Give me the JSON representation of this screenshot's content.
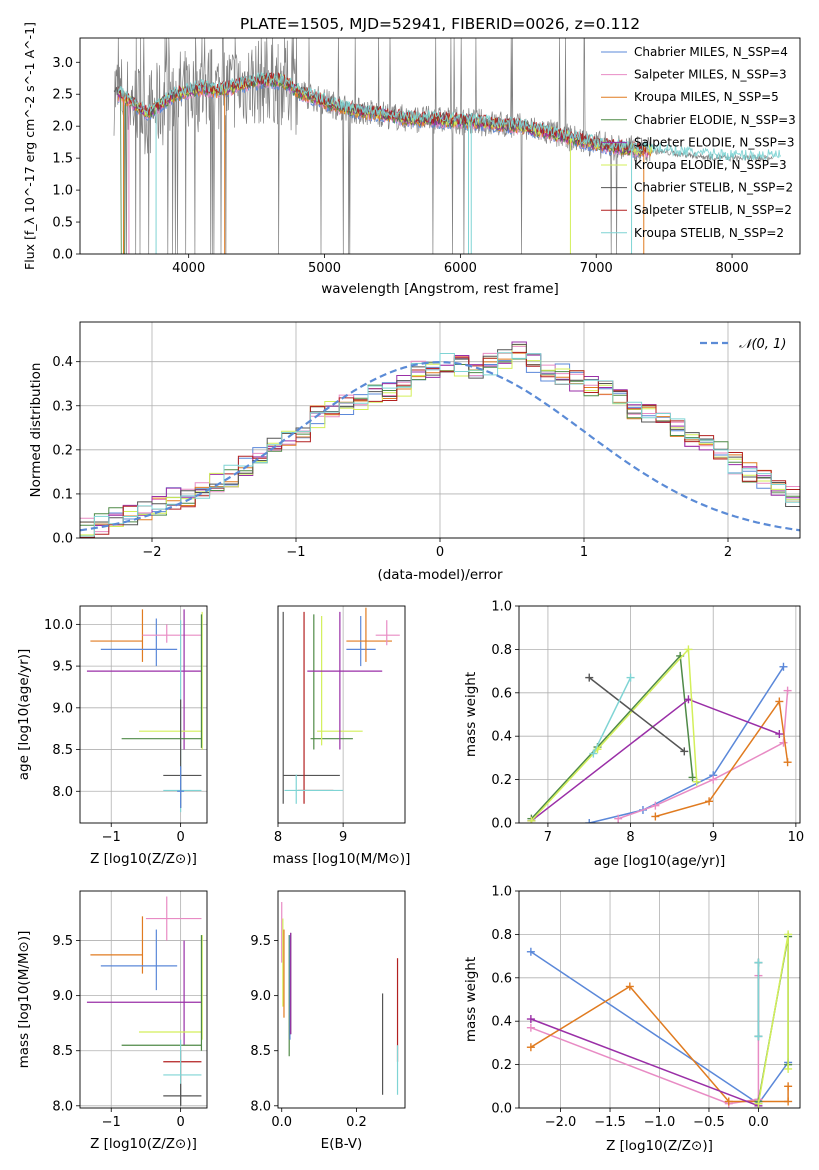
{
  "figure": {
    "title": "PLATE=1505, MJD=52941, FIBERID=0026, z=0.112"
  },
  "colors": {
    "c1": "#5b88d9",
    "c2": "#e88bc4",
    "c3": "#e07b20",
    "c4": "#4f8a47",
    "c5": "#9a2fa7",
    "c6": "#d3ef5a",
    "c7": "#555555",
    "c8": "#b22020",
    "c9": "#7fd4d4",
    "gray": "#808080",
    "gauss": "#5b8bd6"
  },
  "chart_data": [
    {
      "id": "spectrum",
      "type": "line",
      "xlabel": "wavelength [Angstrom, rest frame]",
      "ylabel": "Flux [f_λ 10^-17 erg cm^-2 s^-1 A^-1]",
      "xlim": [
        3200,
        8500
      ],
      "ylim": [
        0,
        3.38
      ],
      "xticks": [
        "4000",
        "5000",
        "6000",
        "7000",
        "8000"
      ],
      "yticks": [
        "0.0",
        "0.5",
        "1.0",
        "1.5",
        "2.0",
        "2.5",
        "3.0"
      ],
      "legend_position": "upper right",
      "legend": [
        {
          "label": "Chabrier MILES, N_SSP=4",
          "color": "c1"
        },
        {
          "label": "Salpeter MILES, N_SSP=3",
          "color": "c2"
        },
        {
          "label": "Kroupa MILES, N_SSP=5",
          "color": "c3"
        },
        {
          "label": "Chabrier ELODIE, N_SSP=3",
          "color": "c4"
        },
        {
          "label": "Salpeter ELODIE, N_SSP=3",
          "color": "c5"
        },
        {
          "label": "Kroupa ELODIE, N_SSP=3",
          "color": "c6"
        },
        {
          "label": "Chabrier STELIB, N_SSP=2",
          "color": "c7"
        },
        {
          "label": "Salpeter STELIB, N_SSP=2",
          "color": "c8"
        },
        {
          "label": "Kroupa STELIB, N_SSP=2",
          "color": "c9"
        }
      ],
      "continuum": {
        "x": [
          3450,
          3600,
          3700,
          3800,
          3900,
          4000,
          4100,
          4200,
          4300,
          4400,
          4500,
          4600,
          4700,
          4800,
          5000,
          5200,
          5400,
          5600,
          5800,
          6000,
          6200,
          6400,
          6600,
          6800,
          7000,
          7200,
          7400,
          7600,
          7800,
          8000,
          8200,
          8300
        ],
        "y": [
          2.55,
          2.35,
          2.2,
          2.35,
          2.5,
          2.55,
          2.6,
          2.55,
          2.6,
          2.65,
          2.7,
          2.72,
          2.7,
          2.55,
          2.38,
          2.25,
          2.2,
          2.12,
          2.1,
          2.08,
          2.05,
          2.0,
          1.93,
          1.82,
          1.72,
          1.65,
          1.62,
          1.57,
          1.52,
          1.5,
          1.5,
          1.5
        ]
      }
    },
    {
      "id": "residual-hist",
      "type": "bar",
      "xlabel": "(data-model)/error",
      "ylabel": "Normed distribution",
      "xlim": [
        -2.5,
        2.5
      ],
      "ylim": [
        0,
        0.49
      ],
      "xticks": [
        "−2",
        "−1",
        "0",
        "1",
        "2"
      ],
      "yticks": [
        "0.0",
        "0.1",
        "0.2",
        "0.3",
        "0.4"
      ],
      "legend": [
        {
          "label": "𝒩(0, 1)",
          "color": "gauss"
        }
      ],
      "bin_width": 0.1,
      "values": [
        0.02,
        0.03,
        0.045,
        0.055,
        0.06,
        0.075,
        0.09,
        0.095,
        0.11,
        0.125,
        0.14,
        0.165,
        0.185,
        0.205,
        0.225,
        0.24,
        0.275,
        0.295,
        0.3,
        0.31,
        0.325,
        0.335,
        0.345,
        0.38,
        0.385,
        0.395,
        0.39,
        0.37,
        0.395,
        0.405,
        0.42,
        0.4,
        0.38,
        0.37,
        0.355,
        0.345,
        0.335,
        0.315,
        0.29,
        0.285,
        0.28,
        0.255,
        0.23,
        0.21,
        0.195,
        0.17,
        0.15,
        0.13,
        0.11,
        0.095,
        0.08,
        0.07,
        0.06,
        0.05,
        0.045,
        0.04,
        0.035,
        0.03,
        0.025,
        0.02
      ]
    },
    {
      "id": "age-vs-Z",
      "type": "scatter",
      "xlabel": "Z [log10(Z/Z⊙)]",
      "ylabel": "age  [log10(age/yr)]",
      "xlim": [
        -1.45,
        0.38
      ],
      "ylim": [
        7.62,
        10.22
      ],
      "xticks": [
        "−1",
        "0"
      ],
      "yticks": [
        "8.0",
        "8.5",
        "9.0",
        "9.5",
        "10.0"
      ],
      "errorbars": [
        {
          "color": "c3",
          "h": [
            -1.3,
            -0.55,
            9.8
          ],
          "v": [
            -0.55,
            9.55,
            10.18
          ]
        },
        {
          "color": "c1",
          "h": [
            -1.15,
            -0.05,
            9.7
          ],
          "v": [
            -0.35,
            9.5,
            10.07
          ]
        },
        {
          "color": "c2",
          "h": [
            -0.55,
            0.3,
            9.87
          ],
          "v": [
            -0.2,
            9.78,
            10.0
          ]
        },
        {
          "color": "c5",
          "h": [
            -1.35,
            0.3,
            9.44
          ],
          "v": [
            0.05,
            8.5,
            10.18
          ]
        },
        {
          "color": "c6",
          "v": [
            0.31,
            8.5,
            10.15
          ],
          "h": [
            -0.6,
            0.3,
            8.72
          ]
        },
        {
          "color": "c4",
          "h": [
            -0.85,
            0.3,
            8.63
          ],
          "v": [
            0.3,
            8.52,
            10.12
          ]
        },
        {
          "color": "c9",
          "v": [
            0.0,
            7.75,
            10.05
          ],
          "h": [
            -0.25,
            0.3,
            8.01
          ]
        },
        {
          "color": "c7",
          "h": [
            -0.25,
            0.3,
            8.19
          ],
          "v": [
            0.0,
            7.8,
            9.1
          ]
        },
        {
          "color": "c1",
          "v": [
            0.0,
            7.8,
            8.3
          ],
          "h": [
            -0.05,
            0.05,
            8.0
          ]
        }
      ]
    },
    {
      "id": "age-vs-mass",
      "type": "scatter",
      "xlabel": "mass [log10(M/M⊙)]",
      "ylabel": "",
      "xlim": [
        8.0,
        9.95
      ],
      "ylim": [
        7.62,
        10.22
      ],
      "xticks": [
        "8",
        "9"
      ],
      "yticks": [],
      "errorbars": [
        {
          "color": "c7",
          "v": [
            8.08,
            7.85,
            10.15
          ],
          "h": [
            8.08,
            8.95,
            8.19
          ]
        },
        {
          "color": "c8",
          "v": [
            8.4,
            7.85,
            10.15
          ],
          "h": [
            8.3,
            8.85,
            8.01
          ]
        },
        {
          "color": "c4",
          "v": [
            8.55,
            8.5,
            10.12
          ],
          "h": [
            8.5,
            9.15,
            8.63
          ]
        },
        {
          "color": "c6",
          "v": [
            8.67,
            8.55,
            10.1
          ],
          "h": [
            8.6,
            9.3,
            8.72
          ]
        },
        {
          "color": "c5",
          "v": [
            8.95,
            8.5,
            10.15
          ],
          "h": [
            8.45,
            9.6,
            9.44
          ]
        },
        {
          "color": "c9",
          "h": [
            8.1,
            9.0,
            8.01
          ],
          "v": [
            8.28,
            7.85,
            8.2
          ]
        },
        {
          "color": "c1",
          "v": [
            9.27,
            9.5,
            10.1
          ],
          "h": [
            9.05,
            9.5,
            9.7
          ]
        },
        {
          "color": "c3",
          "v": [
            9.35,
            9.55,
            10.2
          ],
          "h": [
            9.05,
            9.75,
            9.8
          ]
        },
        {
          "color": "c2",
          "v": [
            9.67,
            9.75,
            10.05
          ],
          "h": [
            9.5,
            9.87,
            9.87
          ]
        }
      ]
    },
    {
      "id": "massweight-vs-age",
      "type": "line",
      "xlabel": "age  [log10(age/yr)]",
      "ylabel": "mass weight",
      "xlim": [
        6.65,
        10.05
      ],
      "ylim": [
        0,
        1.0
      ],
      "xticks": [
        "7",
        "8",
        "9",
        "10"
      ],
      "yticks": [
        "0.0",
        "0.2",
        "0.4",
        "0.6",
        "0.8",
        "1.0"
      ],
      "series": [
        {
          "color": "c1",
          "x": [
            7.5,
            8.15,
            9.0,
            9.85
          ],
          "y": [
            0.0,
            0.06,
            0.22,
            0.72
          ]
        },
        {
          "color": "c2",
          "x": [
            7.85,
            8.3,
            9.0,
            9.85,
            9.9
          ],
          "y": [
            0.02,
            0.08,
            0.2,
            0.37,
            0.61
          ]
        },
        {
          "color": "c3",
          "x": [
            8.3,
            8.95,
            9.8,
            9.9
          ],
          "y": [
            0.03,
            0.1,
            0.56,
            0.28
          ]
        },
        {
          "color": "c4",
          "x": [
            6.8,
            7.6,
            8.6,
            8.75
          ],
          "y": [
            0.02,
            0.35,
            0.77,
            0.21
          ]
        },
        {
          "color": "c5",
          "x": [
            6.8,
            8.7,
            9.8
          ],
          "y": [
            0.01,
            0.57,
            0.41
          ]
        },
        {
          "color": "c6",
          "x": [
            6.8,
            7.6,
            8.7,
            8.8
          ],
          "y": [
            0.01,
            0.34,
            0.8,
            0.19
          ]
        },
        {
          "color": "c7",
          "x": [
            7.5,
            8.65
          ],
          "y": [
            0.67,
            0.33
          ]
        },
        {
          "color": "c9",
          "x": [
            7.55,
            8.0
          ],
          "y": [
            0.32,
            0.67
          ]
        }
      ]
    },
    {
      "id": "mass-vs-Z",
      "type": "scatter",
      "xlabel": "Z [log10(Z/Z⊙)]",
      "ylabel": "mass [log10(M/M⊙)]",
      "xlim": [
        -1.45,
        0.38
      ],
      "ylim": [
        7.98,
        9.95
      ],
      "xticks": [
        "−1",
        "0"
      ],
      "yticks": [
        "8.0",
        "8.5",
        "9.0",
        "9.5"
      ],
      "errorbars": [
        {
          "color": "c2",
          "h": [
            -0.5,
            0.3,
            9.7
          ],
          "v": [
            -0.2,
            9.5,
            9.9
          ]
        },
        {
          "color": "c3",
          "h": [
            -1.3,
            -0.55,
            9.37
          ],
          "v": [
            -0.55,
            9.2,
            9.72
          ]
        },
        {
          "color": "c1",
          "h": [
            -1.15,
            -0.05,
            9.27
          ],
          "v": [
            -0.35,
            9.05,
            9.6
          ]
        },
        {
          "color": "c5",
          "h": [
            -1.35,
            0.3,
            8.94
          ],
          "v": [
            0.05,
            8.55,
            9.5
          ]
        },
        {
          "color": "c6",
          "h": [
            -0.6,
            0.3,
            8.67
          ],
          "v": [
            0.31,
            8.6,
            9.55
          ]
        },
        {
          "color": "c4",
          "h": [
            -0.85,
            0.3,
            8.55
          ],
          "v": [
            0.3,
            8.5,
            9.55
          ]
        },
        {
          "color": "c8",
          "h": [
            -0.25,
            0.3,
            8.4
          ],
          "v": [
            0.0,
            8.0,
            8.5
          ]
        },
        {
          "color": "c9",
          "h": [
            -0.25,
            0.3,
            8.28
          ],
          "v": [
            0.0,
            8.0,
            8.6
          ]
        },
        {
          "color": "c7",
          "h": [
            -0.25,
            0.3,
            8.09
          ],
          "v": [
            0.0,
            8.0,
            8.2
          ]
        }
      ]
    },
    {
      "id": "mass-vs-ebv",
      "type": "scatter",
      "xlabel": "E(B-V)",
      "ylabel": "",
      "xlim": [
        -0.01,
        0.33
      ],
      "ylim": [
        7.98,
        9.95
      ],
      "xticks": [
        "0.0",
        "0.2"
      ],
      "yticks": [
        "8.0",
        "8.5",
        "9.0",
        "9.5"
      ],
      "errorbars": [
        {
          "color": "c2",
          "v": [
            0.0,
            9.3,
            9.85
          ]
        },
        {
          "color": "c6",
          "v": [
            0.003,
            8.9,
            9.7
          ]
        },
        {
          "color": "c3",
          "v": [
            0.006,
            8.8,
            9.6
          ]
        },
        {
          "color": "c4",
          "v": [
            0.02,
            8.45,
            9.55
          ]
        },
        {
          "color": "c1",
          "v": [
            0.022,
            8.6,
            9.55
          ]
        },
        {
          "color": "c7",
          "v": [
            0.024,
            8.65,
            9.57
          ]
        },
        {
          "color": "c5",
          "v": [
            0.024,
            8.65,
            9.57
          ]
        },
        {
          "color": "c7",
          "v": [
            0.27,
            8.1,
            9.02
          ]
        },
        {
          "color": "c8",
          "v": [
            0.31,
            8.4,
            9.34
          ]
        },
        {
          "color": "c9",
          "v": [
            0.31,
            8.1,
            8.55
          ]
        }
      ]
    },
    {
      "id": "massweight-vs-Z",
      "type": "line",
      "xlabel": "Z [log10(Z/Z⊙)]",
      "ylabel": "mass weight",
      "xlim": [
        -2.42,
        0.42
      ],
      "ylim": [
        0,
        1.0
      ],
      "xticks": [
        "−2.0",
        "−1.5",
        "−1.0",
        "−0.5",
        "0.0"
      ],
      "yticks": [
        "0.0",
        "0.2",
        "0.4",
        "0.6",
        "0.8",
        "1.0"
      ],
      "series": [
        {
          "color": "c1",
          "x": [
            -2.3,
            0.0,
            0.3
          ],
          "y": [
            0.72,
            0.02,
            0.21
          ]
        },
        {
          "color": "c2",
          "x": [
            -2.3,
            -0.3,
            0.0,
            0.0
          ],
          "y": [
            0.37,
            0.02,
            0.04,
            0.61
          ]
        },
        {
          "color": "c3",
          "x": [
            -2.3,
            -1.3,
            -0.3,
            0.3,
            0.3
          ],
          "y": [
            0.28,
            0.56,
            0.03,
            0.03,
            0.1
          ]
        },
        {
          "color": "c4",
          "x": [
            0.0,
            0.3,
            0.3
          ],
          "y": [
            0.03,
            0.79,
            0.2
          ]
        },
        {
          "color": "c5",
          "x": [
            -2.3,
            0.0
          ],
          "y": [
            0.41,
            0.01
          ]
        },
        {
          "color": "c6",
          "x": [
            0.0,
            0.3,
            0.3
          ],
          "y": [
            0.02,
            0.8,
            0.18
          ]
        },
        {
          "color": "c7",
          "x": [
            0.0,
            0.0
          ],
          "y": [
            0.33,
            0.67
          ]
        },
        {
          "color": "c9",
          "x": [
            0.0,
            0.0
          ],
          "y": [
            0.33,
            0.67
          ]
        }
      ]
    }
  ]
}
